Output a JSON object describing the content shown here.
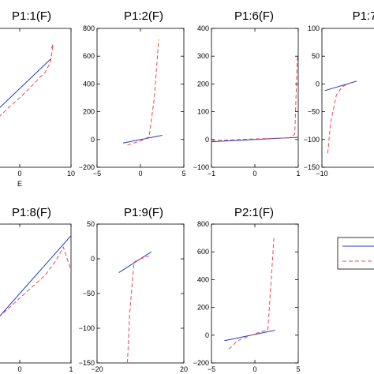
{
  "figure": {
    "legend": {
      "entries": [
        {
          "name": "",
          "color": "#1f3fbf",
          "dash": "solid"
        },
        {
          "name": "",
          "color": "#e8485a",
          "dash": "dashed"
        }
      ]
    }
  },
  "chart_data": [
    {
      "type": "line",
      "title": "P1:1(F)",
      "xlabel": "E",
      "xlim": [
        -10,
        10
      ],
      "ylim": [
        -600,
        800
      ],
      "xticks": [
        0,
        10
      ],
      "xtick_labels": [
        "0",
        "10"
      ],
      "yticks": [],
      "ytick_labels": [],
      "series": [
        {
          "style": "solid",
          "x": [
            -10,
            6
          ],
          "y": [
            -300,
            490
          ]
        },
        {
          "style": "dashed",
          "x": [
            -8,
            -6,
            -4,
            -2,
            0,
            2,
            4,
            5,
            6,
            6.5,
            6
          ],
          "y": [
            -250,
            -170,
            -90,
            10,
            100,
            200,
            310,
            360,
            460,
            640,
            580
          ]
        }
      ]
    },
    {
      "type": "line",
      "title": "P1:2(F)",
      "xlabel": "",
      "xlim": [
        -5,
        5
      ],
      "ylim": [
        -200,
        800
      ],
      "xticks": [
        -5,
        0,
        5
      ],
      "xtick_labels": [
        "−5",
        "0",
        "5"
      ],
      "yticks": [
        -200,
        0,
        200,
        400,
        600,
        800
      ],
      "ytick_labels": [
        "−200",
        "0",
        "200",
        "400",
        "600",
        "800"
      ],
      "series": [
        {
          "style": "solid",
          "x": [
            -2,
            2.5
          ],
          "y": [
            -25,
            30
          ]
        },
        {
          "style": "dashed",
          "x": [
            -1.5,
            0,
            1,
            1.6,
            2.1
          ],
          "y": [
            -40,
            -10,
            20,
            300,
            720
          ]
        }
      ]
    },
    {
      "type": "line",
      "title": "P1:6(F)",
      "xlabel": "",
      "xlim": [
        -1,
        1
      ],
      "ylim": [
        -100,
        400
      ],
      "xticks": [
        -1,
        0,
        1
      ],
      "xtick_labels": [
        "−1",
        "0",
        "1"
      ],
      "yticks": [
        -100,
        0,
        100,
        200,
        300,
        400
      ],
      "ytick_labels": [
        "−100",
        "0",
        "100",
        "200",
        "300",
        "400"
      ],
      "series": [
        {
          "style": "solid",
          "x": [
            -1,
            1
          ],
          "y": [
            -8,
            8
          ]
        },
        {
          "style": "dashed",
          "x": [
            -1,
            0,
            0.8,
            0.92,
            0.98
          ],
          "y": [
            -4,
            2,
            6,
            20,
            300
          ]
        }
      ]
    },
    {
      "type": "line",
      "title": "P1:7",
      "xlabel": "",
      "xlim": [
        -10,
        20
      ],
      "ylim": [
        -150,
        100
      ],
      "xticks": [
        -10
      ],
      "xtick_labels": [
        "−10"
      ],
      "yticks": [
        -150,
        -100,
        -50,
        0,
        50,
        100
      ],
      "ytick_labels": [
        "−150",
        "−100",
        "−50",
        "0",
        "50",
        "100"
      ],
      "series": [
        {
          "style": "solid",
          "x": [
            -9,
            2
          ],
          "y": [
            -12,
            5
          ]
        },
        {
          "style": "dashed",
          "x": [
            -8,
            -7,
            -5,
            -3,
            0
          ],
          "y": [
            -125,
            -70,
            -20,
            -5,
            2
          ]
        }
      ]
    },
    {
      "type": "line",
      "title": "P1:8(F)",
      "xlabel": "",
      "xlim": [
        -1,
        1
      ],
      "ylim": [
        -10,
        50
      ],
      "xticks": [
        0,
        1
      ],
      "xtick_labels": [
        "0",
        "1"
      ],
      "yticks": [],
      "ytick_labels": [],
      "series": [
        {
          "style": "solid",
          "x": [
            -1,
            1
          ],
          "y": [
            -5,
            45
          ]
        },
        {
          "style": "dashed",
          "x": [
            -1,
            -0.6,
            -0.2,
            0.2,
            0.5,
            0.7,
            0.85,
            1
          ],
          "y": [
            -4,
            6,
            14,
            22,
            28,
            34,
            40,
            30
          ]
        }
      ]
    },
    {
      "type": "line",
      "title": "P1:9(F)",
      "xlabel": "",
      "xlim": [
        -20,
        20
      ],
      "ylim": [
        -150,
        50
      ],
      "xticks": [
        -20,
        20
      ],
      "xtick_labels": [
        "−20",
        "20"
      ],
      "yticks": [
        -150,
        -100,
        -50,
        0,
        50
      ],
      "ytick_labels": [
        "−150",
        "−100",
        "−50",
        "0",
        "50"
      ],
      "series": [
        {
          "style": "solid",
          "x": [
            -10,
            5
          ],
          "y": [
            -20,
            10
          ]
        },
        {
          "style": "dashed",
          "x": [
            -6,
            -5,
            -3,
            0,
            5
          ],
          "y": [
            -150,
            -80,
            -5,
            0,
            5
          ]
        }
      ]
    },
    {
      "type": "line",
      "title": "P2:1(F)",
      "xlabel": "",
      "xlim": [
        -5,
        5
      ],
      "ylim": [
        -200,
        800
      ],
      "xticks": [
        -5,
        0,
        5
      ],
      "xtick_labels": [
        "−5",
        "0",
        "5"
      ],
      "yticks": [
        -200,
        0,
        200,
        400,
        600,
        800
      ],
      "ytick_labels": [
        "−200",
        "0",
        "200",
        "400",
        "600",
        "800"
      ],
      "series": [
        {
          "style": "solid",
          "x": [
            -3.5,
            2.3
          ],
          "y": [
            -40,
            35
          ]
        },
        {
          "style": "dashed",
          "x": [
            -3,
            -2,
            0,
            1.5,
            2.2
          ],
          "y": [
            -100,
            -40,
            10,
            40,
            700
          ]
        }
      ]
    }
  ]
}
